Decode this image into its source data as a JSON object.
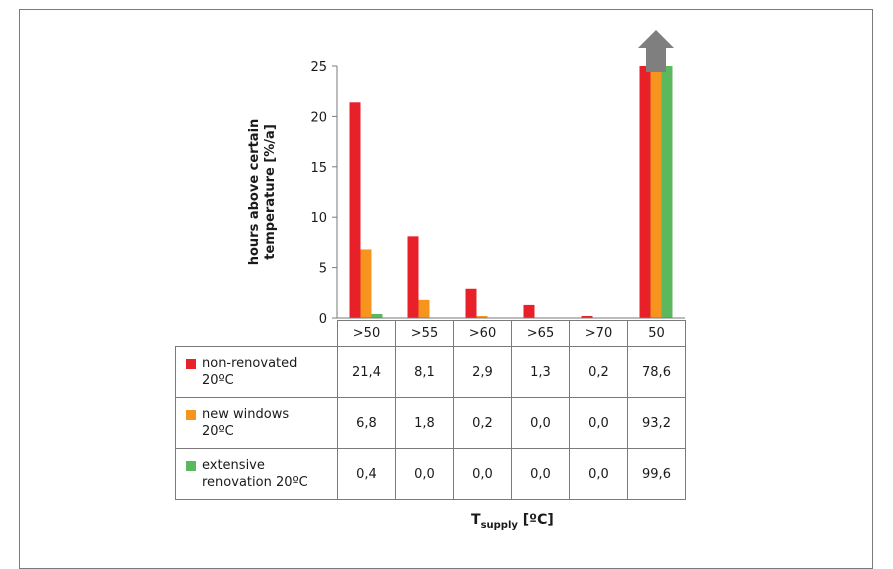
{
  "chart_data": {
    "type": "bar",
    "categories": [
      ">50",
      ">55",
      ">60",
      ">65",
      ">70",
      "50"
    ],
    "series": [
      {
        "name": "non-renovated 20ºC",
        "label_lines": [
          "non-renovated",
          "20ºC"
        ],
        "color": "#e8202a",
        "values": [
          21.4,
          8.1,
          2.9,
          1.3,
          0.2,
          78.6
        ],
        "value_labels": [
          "21,4",
          "8,1",
          "2,9",
          "1,3",
          "0,2",
          "78,6"
        ]
      },
      {
        "name": "new windows 20ºC",
        "label_lines": [
          "new windows",
          "20ºC"
        ],
        "color": "#f7941d",
        "values": [
          6.8,
          1.8,
          0.2,
          0.0,
          0.0,
          93.2
        ],
        "value_labels": [
          "6,8",
          "1,8",
          "0,2",
          "0,0",
          "0,0",
          "93,2"
        ]
      },
      {
        "name": "extensive renovation 20ºC",
        "label_lines": [
          "extensive",
          "renovation 20ºC"
        ],
        "color": "#5cb85c",
        "values": [
          0.4,
          0.0,
          0.0,
          0.0,
          0.0,
          99.6
        ],
        "value_labels": [
          "0,4",
          "0,0",
          "0,0",
          "0,0",
          "0,0",
          "99,6"
        ]
      }
    ],
    "ylabel_lines": [
      "hours above certain",
      "temperature [%/a]"
    ],
    "yticks": [
      0,
      5,
      10,
      15,
      20,
      25
    ],
    "ylim": [
      0,
      25
    ],
    "xlabel_main": "T",
    "xlabel_sub": "supply",
    "xlabel_unit": "[ºC]",
    "grid": false,
    "legend": "data-table",
    "overflow_arrow": {
      "category": "50",
      "color": "#7f7f7f",
      "icon": "up-arrow-icon"
    }
  }
}
